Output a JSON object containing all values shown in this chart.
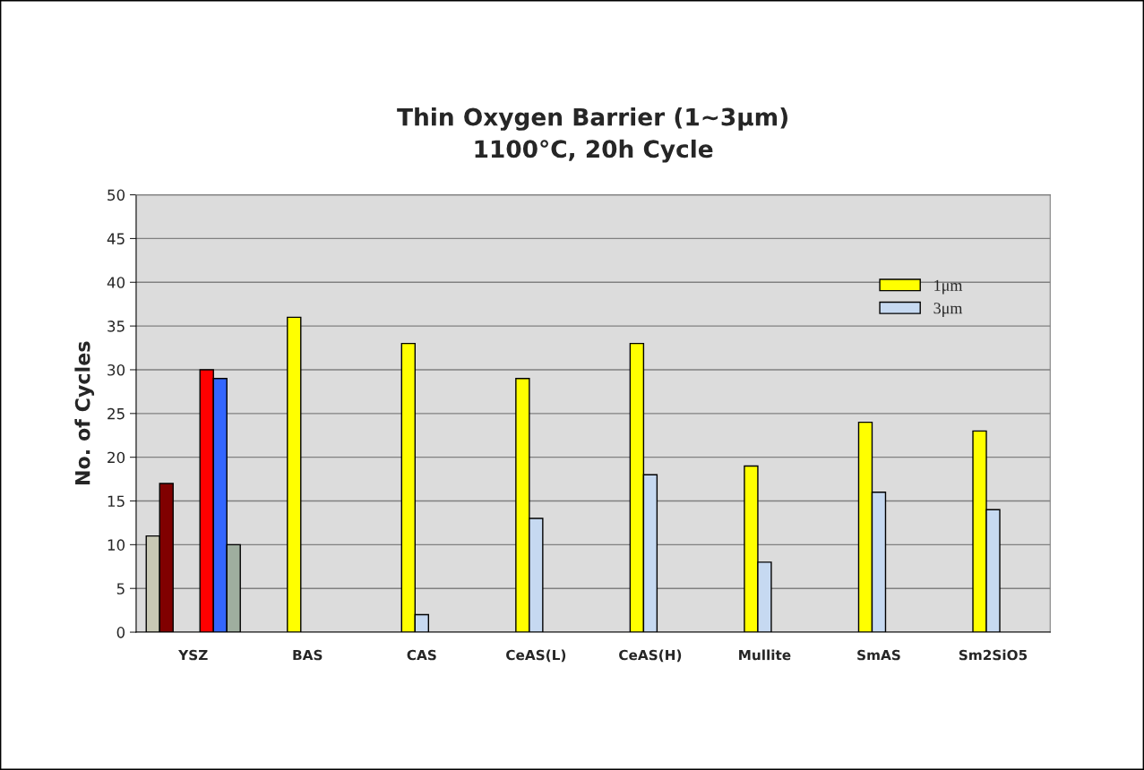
{
  "chart_data": {
    "type": "bar",
    "title": "Thin Oxygen Barrier (1~3μm)\n1100°C, 20h Cycle",
    "ylabel": "No. of Cycles",
    "categories": [
      "YSZ",
      "BAS",
      "CAS",
      "CeAS(L)",
      "CeAS(H)",
      "Mullite",
      "SmAS",
      "Sm2SiO5"
    ],
    "series": [
      {
        "color": "#c8c8b4",
        "values": [
          11,
          null,
          null,
          null,
          null,
          null,
          null,
          null
        ]
      },
      {
        "color": "#800000",
        "values": [
          17,
          null,
          null,
          null,
          null,
          null,
          null,
          null
        ]
      },
      {
        "name": "1μm",
        "color": "#ffff00",
        "values": [
          null,
          36,
          33,
          29,
          33,
          19,
          24,
          23
        ]
      },
      {
        "name": "3μm",
        "color": "#c6d9f1",
        "values": [
          null,
          null,
          2,
          13,
          18,
          8,
          16,
          14
        ]
      },
      {
        "color": "#ff0000",
        "values": [
          30,
          null,
          null,
          null,
          null,
          null,
          null,
          null
        ]
      },
      {
        "color": "#3366ff",
        "values": [
          29,
          null,
          null,
          null,
          null,
          null,
          null,
          null
        ]
      },
      {
        "color": "#9fae9f",
        "values": [
          10,
          null,
          null,
          null,
          null,
          null,
          null,
          null
        ]
      }
    ],
    "ylim": [
      0,
      50
    ],
    "yticks": [
      0,
      5,
      10,
      15,
      20,
      25,
      30,
      35,
      40,
      45,
      50
    ],
    "grid": "y",
    "legend": "top right"
  }
}
